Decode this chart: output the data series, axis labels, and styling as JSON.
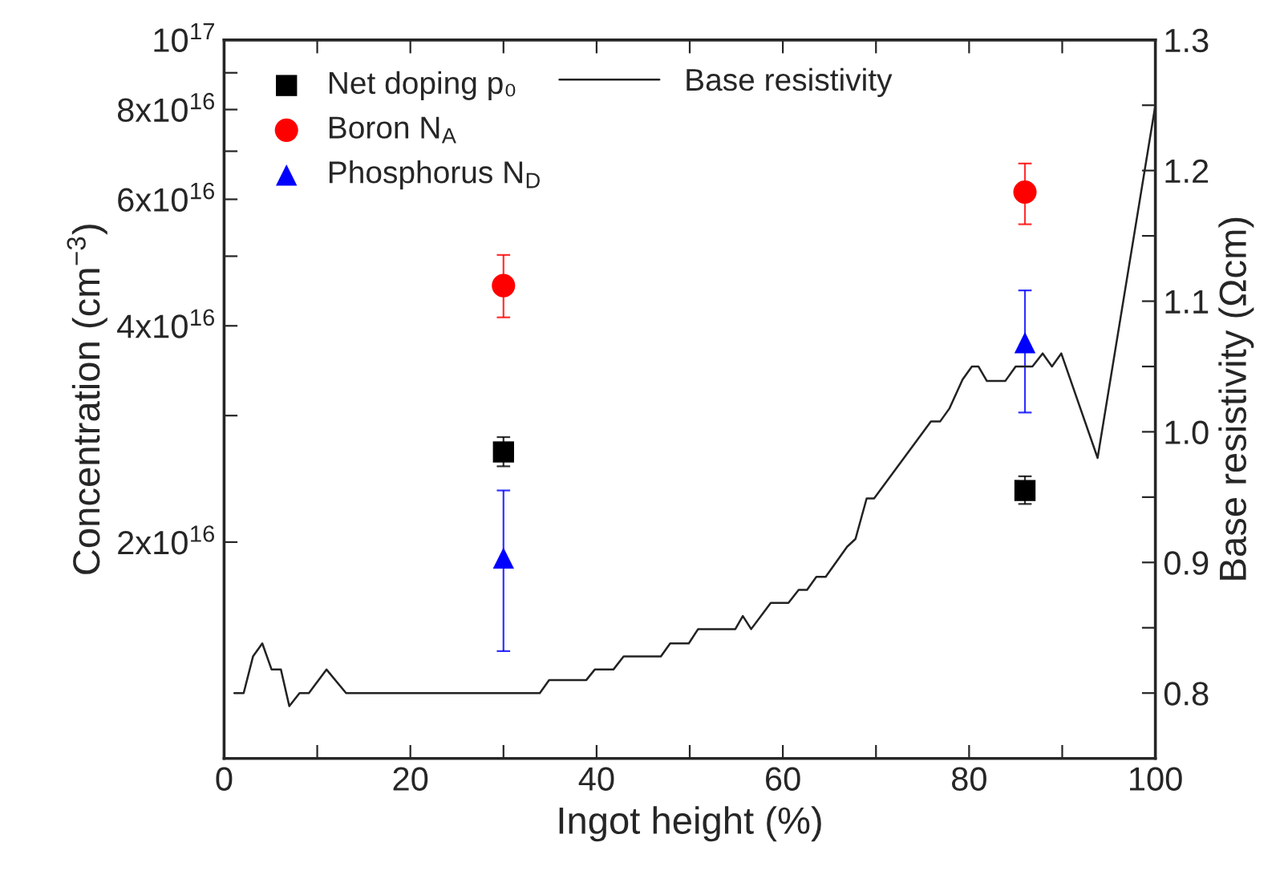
{
  "chart_data": {
    "type": "scatter",
    "xlabel": "Ingot height (%)",
    "ylabel": "Concentration (cm$^{−3}$)",
    "y2label": "Base resistivity (Ωcm)",
    "log": "y",
    "legend": "top left",
    "grid": false,
    "xlim": [
      0,
      100
    ],
    "xticks": [
      0,
      {
        "value": 10,
        "label": null
      },
      20,
      {
        "value": 30,
        "label": null
      },
      40,
      {
        "value": 50,
        "label": null
      },
      60,
      {
        "value": 70,
        "label": null
      },
      80,
      {
        "value": 90,
        "label": null
      },
      100
    ],
    "ylim": [
      1e+16,
      1e+17
    ],
    "yticks": [
      {
        "value": 2e+16,
        "label": "2x10$^{16}$"
      },
      {
        "value": 3e+16,
        "label": null
      },
      {
        "value": 4e+16,
        "label": "4x10$^{16}$"
      },
      {
        "value": 5e+16,
        "label": null
      },
      {
        "value": 6e+16,
        "label": "6x10$^{16}$"
      },
      {
        "value": 7e+16,
        "label": null
      },
      {
        "value": 8e+16,
        "label": "8x10$^{16}$"
      },
      {
        "value": 9e+16,
        "label": null
      },
      {
        "value": 1e+17,
        "label": "10$^{17}$"
      }
    ],
    "y2lim": [
      0.75,
      1.3
    ],
    "y2ticks": [
      {
        "value": 0.8,
        "label": "0.8"
      },
      {
        "value": 0.85,
        "label": null
      },
      {
        "value": 0.9,
        "label": "0.9"
      },
      {
        "value": 0.95,
        "label": null
      },
      {
        "value": 1.0,
        "label": "1.0"
      },
      {
        "value": 1.05,
        "label": null
      },
      {
        "value": 1.1,
        "label": "1.1"
      },
      {
        "value": 1.15,
        "label": null
      },
      {
        "value": 1.2,
        "label": "1.2"
      },
      {
        "value": 1.25,
        "label": null
      },
      {
        "value": 1.3,
        "label": "1.3"
      }
    ],
    "series": [
      {
        "name": "Net doping p₀",
        "marker": "square",
        "color": "#000000",
        "x": [
          30,
          86
        ],
        "values": [
          2.67e+16,
          2.36e+16
        ],
        "errors": [
          [
            2.55e+16,
            2.8e+16
          ],
          [
            2.26e+16,
            2.47e+16
          ]
        ]
      },
      {
        "name": "Boron N$_{A}$",
        "marker": "circle",
        "color": "#ff0000",
        "x": [
          30,
          86
        ],
        "values": [
          4.55e+16,
          6.14e+16
        ],
        "errors": [
          [
            4.11e+16,
            5.02e+16
          ],
          [
            5.54e+16,
            6.73e+16
          ]
        ]
      },
      {
        "name": "Phosphorus N$_{D}$",
        "marker": "triangle",
        "color": "#0000ff",
        "x": [
          30,
          86
        ],
        "values": [
          1.9e+16,
          3.79e+16
        ],
        "errors": [
          [
            1.41e+16,
            2.36e+16
          ],
          [
            3.03e+16,
            4.48e+16
          ]
        ]
      },
      {
        "name": "Base resistivity",
        "type": "line",
        "axis": "y2",
        "marker": "none",
        "line_style": "solid",
        "color": "#222222",
        "x": [
          1.1,
          2.1,
          3.1,
          4.1,
          5.1,
          6.1,
          7.0,
          8.1,
          9.1,
          11.0,
          13.1,
          33.9,
          34.9,
          38.9,
          39.8,
          41.8,
          42.9,
          46.9,
          47.9,
          49.9,
          50.9,
          54.9,
          55.7,
          56.6,
          58.7,
          60.6,
          61.7,
          62.6,
          63.6,
          64.6,
          66.9,
          67.8,
          69.0,
          69.8,
          75.9,
          76.9,
          77.9,
          79.3,
          80.3,
          81.0,
          81.9,
          83.9,
          85.0,
          86.8,
          87.9,
          88.9,
          89.9,
          93.8,
          100
        ],
        "values": [
          0.8,
          0.8,
          0.828,
          0.838,
          0.818,
          0.818,
          0.79,
          0.8,
          0.8,
          0.818,
          0.8,
          0.8,
          0.81,
          0.81,
          0.818,
          0.818,
          0.828,
          0.828,
          0.838,
          0.838,
          0.849,
          0.849,
          0.859,
          0.849,
          0.869,
          0.869,
          0.879,
          0.879,
          0.889,
          0.889,
          0.912,
          0.918,
          0.949,
          0.949,
          1.008,
          1.008,
          1.018,
          1.04,
          1.05,
          1.05,
          1.039,
          1.039,
          1.05,
          1.05,
          1.06,
          1.05,
          1.06,
          0.98,
          1.25
        ]
      }
    ]
  }
}
